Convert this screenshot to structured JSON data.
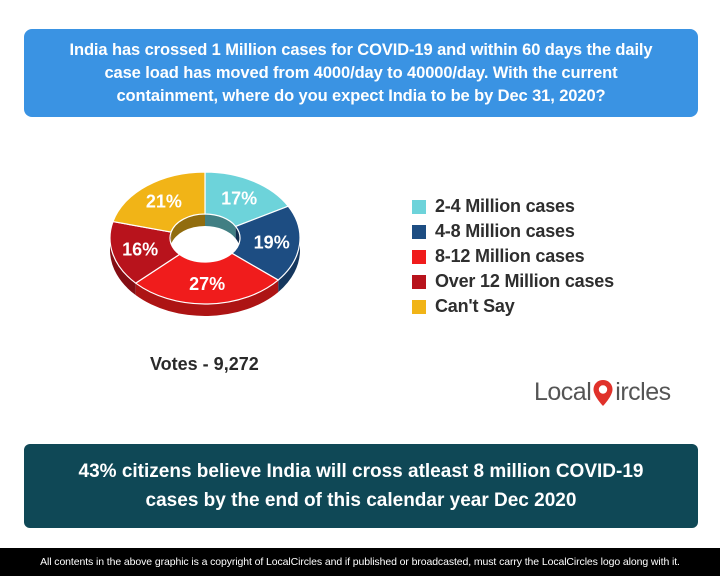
{
  "question": "India has crossed 1 Million cases for COVID-19 and within 60 days the daily case load has moved from 4000/day to 40000/day. With the current containment, where do you expect India to be by Dec 31, 2020?",
  "votes_label": "Votes - 9,272",
  "logo": {
    "text_before": "Local",
    "text_after": "ircles"
  },
  "summary": "43% citizens believe India will cross atleast 8 million COVID-19 cases by the end of this calendar year Dec 2020",
  "footer": "All contents in the above graphic is a copyright of LocalCircles and if published or broadcasted, must carry the LocalCircles logo along with it.",
  "colors": {
    "question_bg": "#3a93e3",
    "summary_bg": "#0f4856",
    "logo_pin": "#e0312a"
  },
  "chart_data": {
    "type": "pie",
    "style": "3d-donut",
    "categories": [
      "2-4 Million cases",
      "4-8 Million cases",
      "8-12 Million cases",
      "Over 12 Million cases",
      "Can't Say"
    ],
    "values": [
      17,
      19,
      27,
      16,
      21
    ],
    "data_labels": [
      "17%",
      "19%",
      "27%",
      "16%",
      "21%"
    ],
    "colors": [
      "#6dd3da",
      "#1d4d82",
      "#f01c1c",
      "#b8131c",
      "#f1b417"
    ],
    "legend_position": "right"
  }
}
